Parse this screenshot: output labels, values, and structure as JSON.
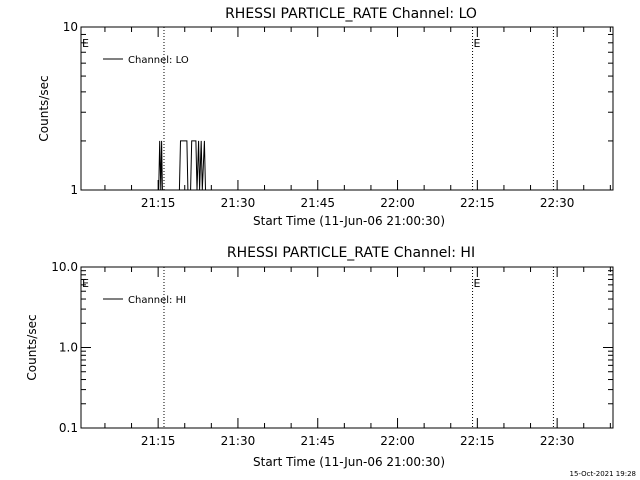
{
  "footer": {
    "timestamp": "15-Oct-2021 19:28"
  },
  "chart_data": [
    {
      "type": "line",
      "title": "RHESSI PARTICLE_RATE Channel: LO",
      "xlabel": "Start Time (11-Jun-06 21:00:30)",
      "ylabel": "Counts/sec",
      "y_scale": "log",
      "ylim": [
        1,
        10
      ],
      "y_ticks": [
        {
          "value": 1,
          "label": "1"
        },
        {
          "value": 10,
          "label": "10"
        }
      ],
      "xlim_minutes_after_start": [
        0,
        100
      ],
      "x_ticks": [
        "21:15",
        "21:30",
        "21:45",
        "22:00",
        "22:15",
        "22:30"
      ],
      "x_tick_minutes_after_start": [
        14.5,
        29.5,
        44.5,
        59.5,
        74.5,
        89.5
      ],
      "grid": false,
      "legend_position": "top-left",
      "series": [
        {
          "name": "Channel: LO",
          "color": "#000000",
          "x_minutes_after_start": [
            14.6,
            14.8,
            15.0,
            15.15,
            15.3,
            18.5,
            18.7,
            19.9,
            20.1,
            20.6,
            20.8,
            21.6,
            21.8,
            22.1,
            22.3,
            22.6,
            22.8,
            23.2,
            23.4,
            23.7
          ],
          "counts_per_sec": [
            1,
            2,
            1,
            2,
            1,
            1,
            2,
            2,
            1,
            1,
            2,
            2,
            1,
            2,
            1,
            2,
            1,
            2,
            1,
            1
          ]
        }
      ],
      "markers": [
        {
          "type": "dotted-vline",
          "minutes_after_start": 15.6
        },
        {
          "type": "dotted-vline",
          "minutes_after_start": 73.6,
          "label": "E"
        },
        {
          "type": "dotted-vline",
          "minutes_after_start": 88.8
        },
        {
          "type": "flag",
          "minutes_after_start": 0,
          "label": "E"
        }
      ]
    },
    {
      "type": "line",
      "title": "RHESSI PARTICLE_RATE Channel: HI",
      "xlabel": "Start Time (11-Jun-06 21:00:30)",
      "ylabel": "Counts/sec",
      "y_scale": "log",
      "ylim": [
        0.1,
        10
      ],
      "y_ticks": [
        {
          "value": 0.1,
          "label": "0.1"
        },
        {
          "value": 1,
          "label": "1.0"
        },
        {
          "value": 10,
          "label": "10.0"
        }
      ],
      "xlim_minutes_after_start": [
        0,
        100
      ],
      "x_ticks": [
        "21:15",
        "21:30",
        "21:45",
        "22:00",
        "22:15",
        "22:30"
      ],
      "x_tick_minutes_after_start": [
        14.5,
        29.5,
        44.5,
        59.5,
        74.5,
        89.5
      ],
      "grid": false,
      "legend_position": "top-left",
      "series": [
        {
          "name": "Channel: HI",
          "color": "#000000",
          "x_minutes_after_start": [],
          "counts_per_sec": []
        }
      ],
      "markers": [
        {
          "type": "dotted-vline",
          "minutes_after_start": 15.6
        },
        {
          "type": "dotted-vline",
          "minutes_after_start": 73.6,
          "label": "E"
        },
        {
          "type": "dotted-vline",
          "minutes_after_start": 88.8
        },
        {
          "type": "flag",
          "minutes_after_start": 0,
          "label": "E"
        }
      ]
    }
  ]
}
